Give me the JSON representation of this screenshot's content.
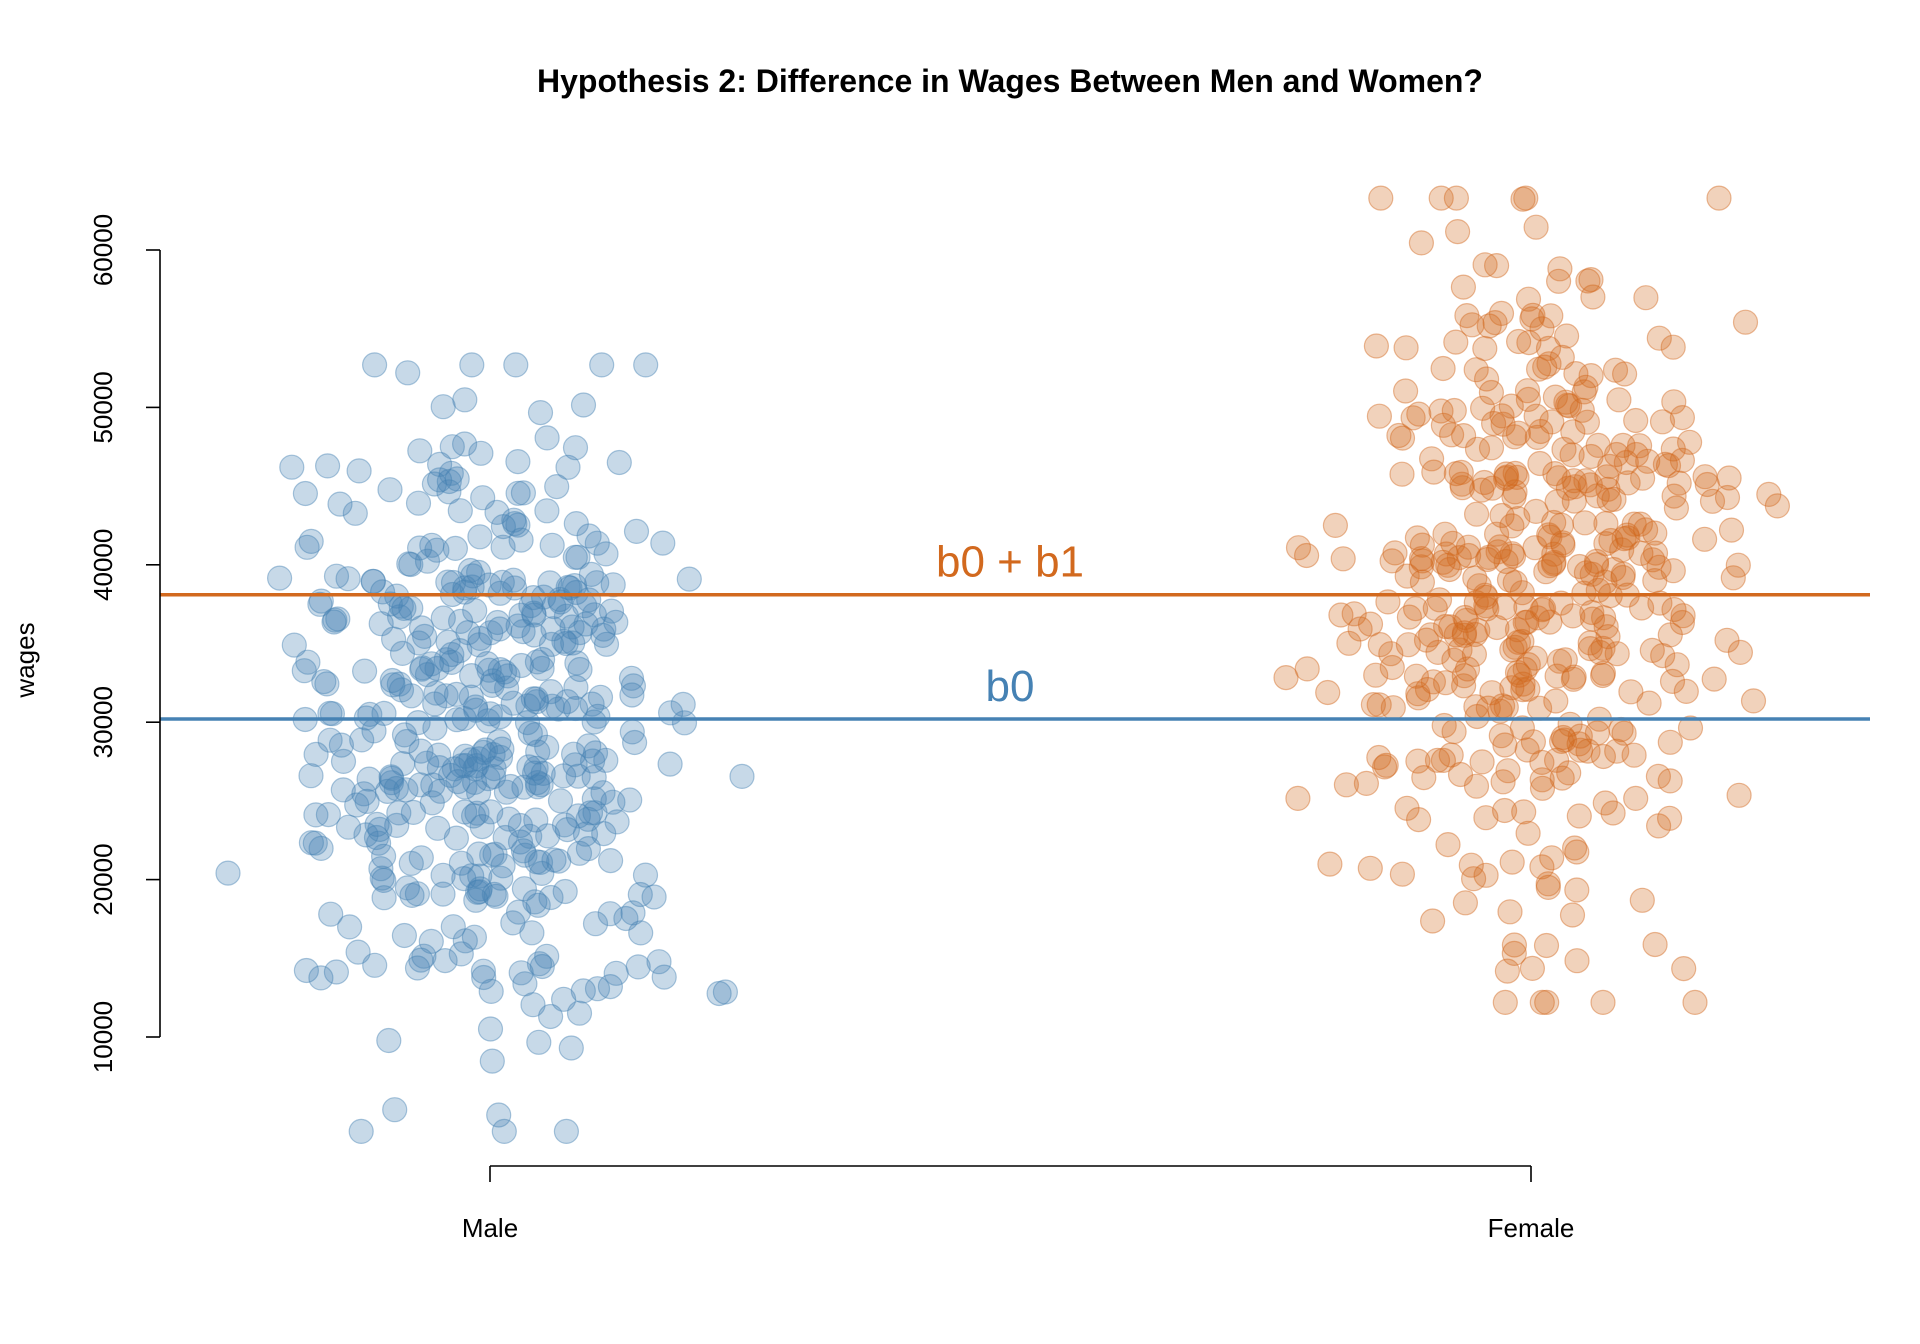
{
  "chart_data": {
    "type": "scatter",
    "title": "Hypothesis 2: Difference in Wages Between Men and Women?",
    "xlabel": "",
    "ylabel": "wages",
    "categories": [
      "Male",
      "Female"
    ],
    "ylim": [
      3000,
      64000
    ],
    "yticks": [
      10000,
      20000,
      30000,
      40000,
      50000,
      60000
    ],
    "ytick_labels": [
      "10000",
      "20000",
      "30000",
      "40000",
      "50000",
      "60000"
    ],
    "grid": false,
    "legend": "none",
    "series": [
      {
        "category": "Male",
        "color": "#4682B4",
        "approx_n": 450,
        "mean": 30200,
        "sd": 10000,
        "min": 4000,
        "max": 52700,
        "jitter_width": 0.55
      },
      {
        "category": "Female",
        "color": "#D2691E",
        "approx_n": 450,
        "mean": 38100,
        "sd": 10800,
        "min": 12200,
        "max": 63300,
        "jitter_width": 0.55
      }
    ],
    "hlines": [
      {
        "label": "b0 + b1",
        "y": 38100,
        "color": "#D2691E"
      },
      {
        "label": "b0",
        "y": 30200,
        "color": "#4682B4"
      }
    ]
  }
}
